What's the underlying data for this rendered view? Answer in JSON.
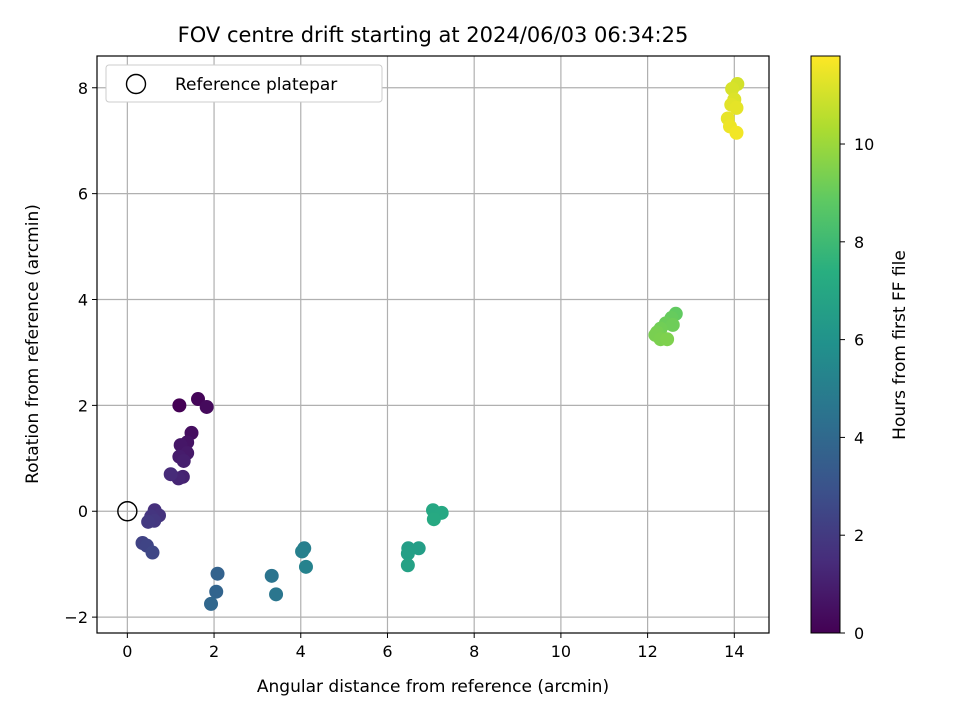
{
  "chart_data": {
    "type": "scatter",
    "title": "FOV centre drift starting at 2024/06/03 06:34:25",
    "xlabel": "Angular distance from reference (arcmin)",
    "ylabel": "Rotation from reference (arcmin)",
    "xlim": [
      -0.7,
      14.8
    ],
    "ylim": [
      -2.3,
      8.6
    ],
    "xticks": [
      0,
      2,
      4,
      6,
      8,
      10,
      12,
      14
    ],
    "yticks": [
      -2,
      0,
      2,
      4,
      6,
      8
    ],
    "grid": true,
    "legend": {
      "placement": "top-left",
      "entries": [
        "Reference platepar"
      ]
    },
    "reference_point": {
      "x": 0,
      "y": 0,
      "label": "Reference platepar"
    },
    "colorbar": {
      "label": "Hours from first FF file",
      "range": [
        0,
        11.8
      ],
      "ticks": [
        0,
        2,
        4,
        6,
        8,
        10
      ],
      "colormap": "viridis"
    },
    "points": [
      {
        "x": 1.2,
        "y": 2.0,
        "h": 0.0
      },
      {
        "x": 1.63,
        "y": 2.12,
        "h": 0.15
      },
      {
        "x": 1.83,
        "y": 1.97,
        "h": 0.3
      },
      {
        "x": 1.48,
        "y": 1.48,
        "h": 0.45
      },
      {
        "x": 1.38,
        "y": 1.3,
        "h": 0.6
      },
      {
        "x": 1.23,
        "y": 1.25,
        "h": 0.7
      },
      {
        "x": 1.38,
        "y": 1.1,
        "h": 0.8
      },
      {
        "x": 1.2,
        "y": 1.03,
        "h": 0.9
      },
      {
        "x": 1.3,
        "y": 0.95,
        "h": 1.0
      },
      {
        "x": 1.28,
        "y": 0.65,
        "h": 1.1
      },
      {
        "x": 1.18,
        "y": 0.62,
        "h": 1.2
      },
      {
        "x": 1.0,
        "y": 0.7,
        "h": 1.4
      },
      {
        "x": 0.63,
        "y": 0.02,
        "h": 1.6
      },
      {
        "x": 0.73,
        "y": -0.08,
        "h": 1.7
      },
      {
        "x": 0.55,
        "y": -0.1,
        "h": 1.8
      },
      {
        "x": 0.62,
        "y": -0.18,
        "h": 1.9
      },
      {
        "x": 0.48,
        "y": -0.2,
        "h": 2.0
      },
      {
        "x": 0.35,
        "y": -0.6,
        "h": 2.3
      },
      {
        "x": 0.45,
        "y": -0.65,
        "h": 2.4
      },
      {
        "x": 0.58,
        "y": -0.78,
        "h": 2.5
      },
      {
        "x": 2.08,
        "y": -1.18,
        "h": 3.7
      },
      {
        "x": 2.05,
        "y": -1.52,
        "h": 3.8
      },
      {
        "x": 1.93,
        "y": -1.75,
        "h": 3.9
      },
      {
        "x": 3.33,
        "y": -1.22,
        "h": 4.5
      },
      {
        "x": 3.43,
        "y": -1.57,
        "h": 4.6
      },
      {
        "x": 4.08,
        "y": -0.7,
        "h": 5.0
      },
      {
        "x": 4.03,
        "y": -0.76,
        "h": 5.1
      },
      {
        "x": 4.12,
        "y": -1.05,
        "h": 5.2
      },
      {
        "x": 6.48,
        "y": -0.7,
        "h": 6.5
      },
      {
        "x": 6.72,
        "y": -0.7,
        "h": 6.55
      },
      {
        "x": 6.47,
        "y": -0.8,
        "h": 6.6
      },
      {
        "x": 6.47,
        "y": -1.02,
        "h": 6.7
      },
      {
        "x": 7.05,
        "y": 0.02,
        "h": 7.0
      },
      {
        "x": 7.25,
        "y": -0.03,
        "h": 7.05
      },
      {
        "x": 7.07,
        "y": -0.15,
        "h": 7.1
      },
      {
        "x": 12.65,
        "y": 3.73,
        "h": 8.9
      },
      {
        "x": 12.55,
        "y": 3.65,
        "h": 9.0
      },
      {
        "x": 12.42,
        "y": 3.55,
        "h": 9.1
      },
      {
        "x": 12.58,
        "y": 3.52,
        "h": 9.15
      },
      {
        "x": 12.3,
        "y": 3.45,
        "h": 9.2
      },
      {
        "x": 12.22,
        "y": 3.38,
        "h": 9.3
      },
      {
        "x": 12.18,
        "y": 3.33,
        "h": 9.35
      },
      {
        "x": 12.3,
        "y": 3.25,
        "h": 9.4
      },
      {
        "x": 12.45,
        "y": 3.25,
        "h": 9.45
      },
      {
        "x": 14.07,
        "y": 8.07,
        "h": 11.0
      },
      {
        "x": 13.95,
        "y": 7.98,
        "h": 11.1
      },
      {
        "x": 14.0,
        "y": 7.78,
        "h": 11.2
      },
      {
        "x": 13.93,
        "y": 7.68,
        "h": 11.3
      },
      {
        "x": 14.05,
        "y": 7.62,
        "h": 11.35
      },
      {
        "x": 13.85,
        "y": 7.42,
        "h": 11.4
      },
      {
        "x": 13.9,
        "y": 7.27,
        "h": 11.5
      },
      {
        "x": 14.05,
        "y": 7.15,
        "h": 11.6
      }
    ]
  }
}
